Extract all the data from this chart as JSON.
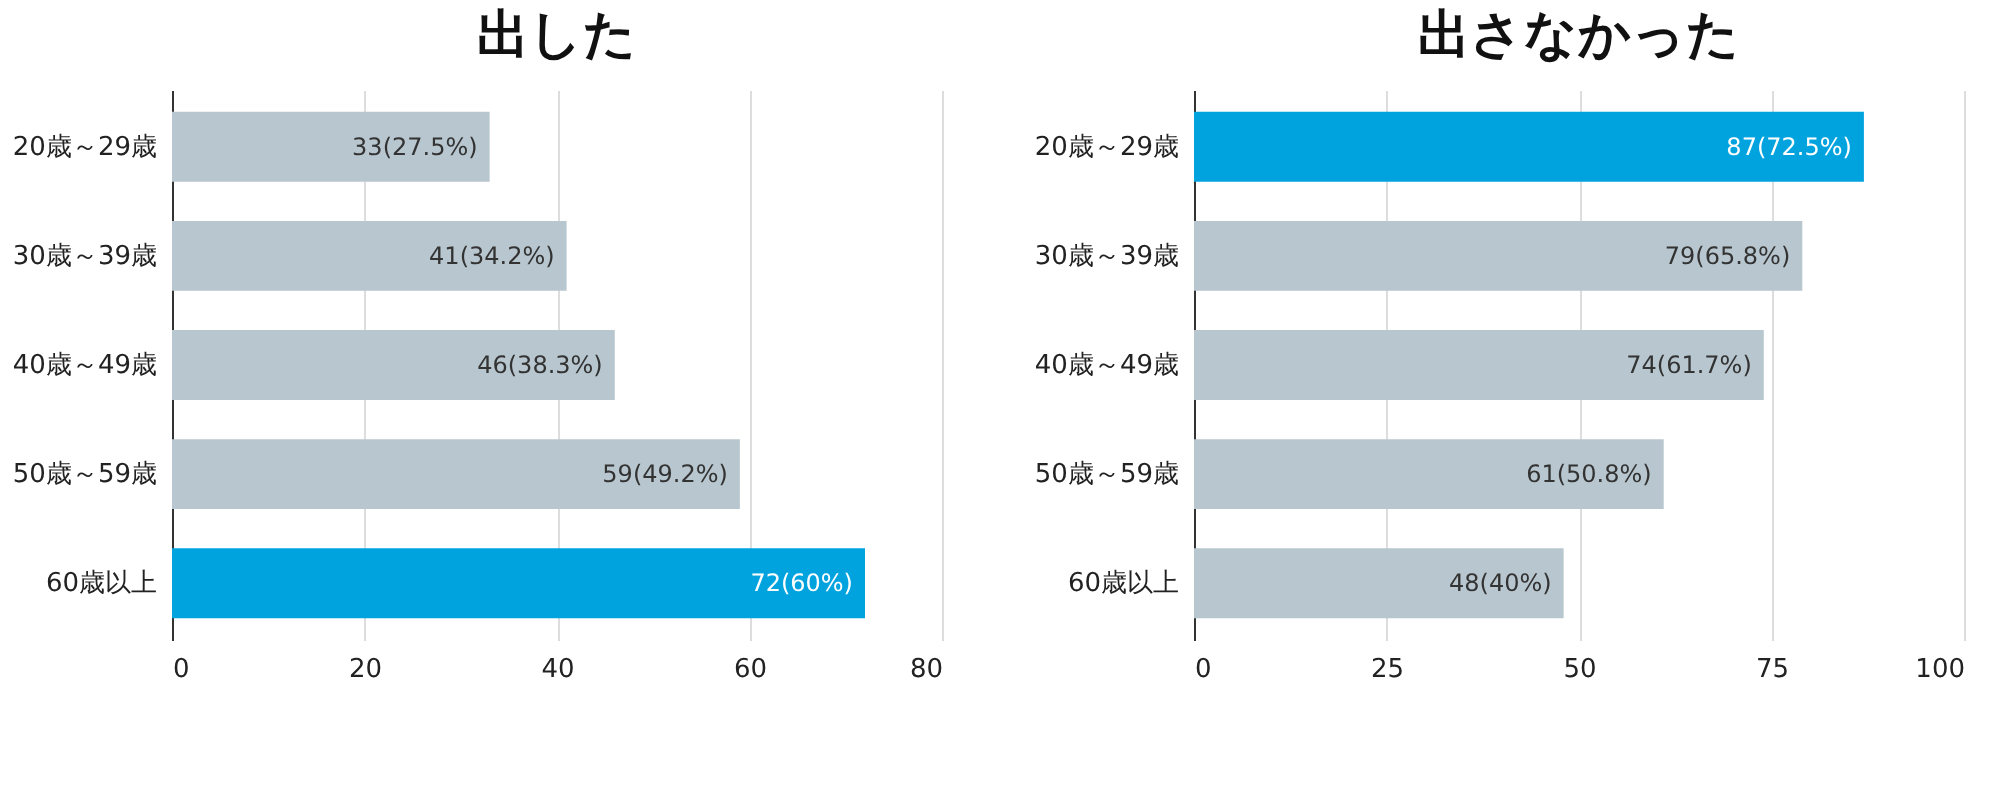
{
  "chart_data": [
    {
      "type": "bar",
      "orientation": "horizontal",
      "title": "出した",
      "categories": [
        "20歳～29歳",
        "30歳～39歳",
        "40歳～49歳",
        "50歳～59歳",
        "60歳以上"
      ],
      "values": [
        33,
        41,
        46,
        59,
        72
      ],
      "colors": [
        "#b8c7cf",
        "#b8c7cf",
        "#b8c7cf",
        "#b8c7cf",
        "#00a3de"
      ],
      "value_labels": [
        "33(27.5%)",
        "41(34.2%)",
        "46(38.3%)",
        "59(49.2%)",
        "72(60%)"
      ],
      "xlim": [
        0,
        80
      ],
      "xticks": [
        0,
        20,
        40,
        60,
        80
      ],
      "grid": "x"
    },
    {
      "type": "bar",
      "orientation": "horizontal",
      "title": "出さなかった",
      "categories": [
        "20歳～29歳",
        "30歳～39歳",
        "40歳～49歳",
        "50歳～59歳",
        "60歳以上"
      ],
      "values": [
        87,
        79,
        74,
        61,
        48
      ],
      "colors": [
        "#00a3de",
        "#b8c7cf",
        "#b8c7cf",
        "#b8c7cf",
        "#b8c7cf"
      ],
      "value_labels": [
        "87(72.5%)",
        "79(65.8%)",
        "74(61.7%)",
        "61(50.8%)",
        "48(40%)"
      ],
      "xlim": [
        0,
        100
      ],
      "xticks": [
        0,
        25,
        50,
        75,
        100
      ],
      "grid": "x"
    }
  ]
}
